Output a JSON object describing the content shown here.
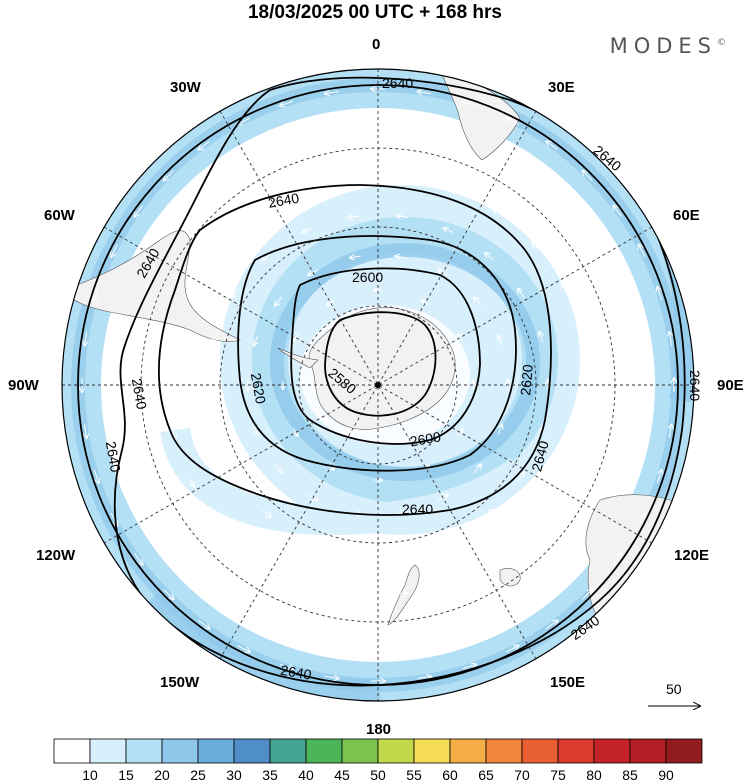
{
  "title": "18/03/2025  00 UTC  + 168 hrs",
  "brand": "MODES",
  "brand_mark": "©",
  "longitude_labels": {
    "top": "0",
    "bottom": "180",
    "left": "90W",
    "right": "90E",
    "l30w": "30W",
    "l30e": "30E",
    "l60w": "60W",
    "l60e": "60E",
    "l120w": "120W",
    "l120e": "120E",
    "l150w": "150W",
    "l150e": "150E"
  },
  "contour_labels": {
    "c2640a": "2640",
    "c2640b": "2640",
    "c2640c": "2640",
    "c2640d": "2640",
    "c2640e": "2640",
    "c2640f": "2640",
    "c2640g": "2640",
    "c2640h": "2640",
    "c2640i": "2640",
    "c2640j": "2640",
    "c2620a": "2620",
    "c2620b": "2620",
    "c2600a": "2600",
    "c2600b": "2600",
    "c2580": "2580"
  },
  "reference_vector_label": "50",
  "colorbar": {
    "labels": [
      "10",
      "15",
      "20",
      "25",
      "30",
      "35",
      "40",
      "45",
      "50",
      "55",
      "60",
      "65",
      "70",
      "75",
      "80",
      "85",
      "90"
    ],
    "colors": [
      "#ffffff",
      "#d8effc",
      "#b4e0f6",
      "#8ec7ea",
      "#6aaedd",
      "#4f8ec9",
      "#45a391",
      "#4db457",
      "#7cc24f",
      "#c3d94c",
      "#f4dc57",
      "#f5ad48",
      "#f1853c",
      "#e85f34",
      "#dc3a2c",
      "#c5232a",
      "#b21f24",
      "#931c1f"
    ]
  },
  "colors": {
    "land": "#f2f2f2",
    "grid": "#333333",
    "contour": "#000000",
    "vector": "#ffffff"
  }
}
